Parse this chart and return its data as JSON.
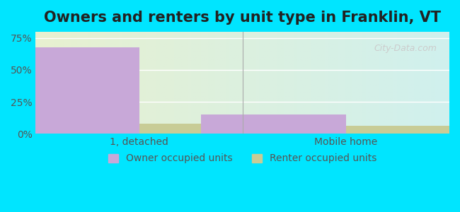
{
  "title": "Owners and renters by unit type in Franklin, VT",
  "categories": [
    "1, detached",
    "Mobile home"
  ],
  "owner_values": [
    68.0,
    15.0
  ],
  "renter_values": [
    8.0,
    6.0
  ],
  "owner_color": "#c8a8d8",
  "renter_color": "#c8cc96",
  "ylim": [
    0,
    80
  ],
  "yticks": [
    0,
    25,
    50,
    75
  ],
  "ytick_labels": [
    "0%",
    "25%",
    "50%",
    "75%"
  ],
  "background_color_left": "#e8f0d0",
  "background_color_right": "#d0f0ee",
  "bar_width": 0.35,
  "watermark": "City-Data.com",
  "legend_labels": [
    "Owner occupied units",
    "Renter occupied units"
  ],
  "title_fontsize": 15,
  "tick_fontsize": 10,
  "legend_fontsize": 10
}
